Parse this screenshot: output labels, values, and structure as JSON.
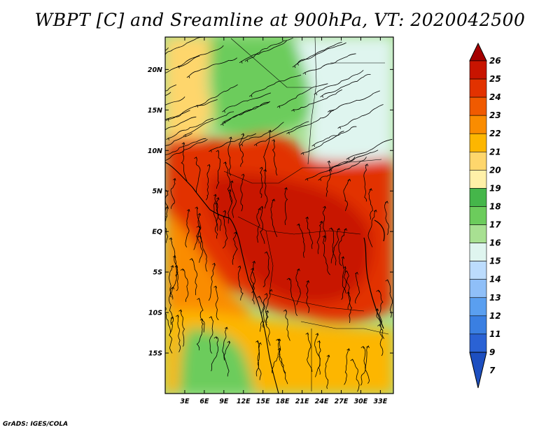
{
  "title": "WBPT [C] and Sreamline at 900hPa, VT: 2020042500",
  "footer": "GrADS: IGES/COLA",
  "map": {
    "variable": "Wet-bulb potential temperature",
    "units": "C",
    "level": "900hPa",
    "valid_time": "2020042500",
    "lon_range": [
      0,
      35
    ],
    "lat_range": [
      -20,
      24
    ],
    "x_ticks": [
      "3E",
      "6E",
      "9E",
      "12E",
      "15E",
      "18E",
      "21E",
      "24E",
      "27E",
      "30E",
      "33E"
    ],
    "x_tick_values": [
      3,
      6,
      9,
      12,
      15,
      18,
      21,
      24,
      27,
      30,
      33
    ],
    "y_ticks": [
      "20N",
      "15N",
      "10N",
      "5N",
      "EQ",
      "5S",
      "10S",
      "15S"
    ],
    "y_tick_values": [
      20,
      15,
      10,
      5,
      0,
      -5,
      -10,
      -15
    ],
    "field_regions": [
      {
        "name": "north-west warm strip",
        "value": 20
      },
      {
        "name": "sahel green zone",
        "value": 17
      },
      {
        "name": "north-east cool zone",
        "value": 15
      },
      {
        "name": "equatorial hot belt",
        "value": 24
      },
      {
        "name": "congo core",
        "value": 25
      },
      {
        "name": "atlantic band",
        "value": 22
      },
      {
        "name": "southern highlands",
        "value": 21
      },
      {
        "name": "south-west green zone",
        "value": 17
      }
    ]
  },
  "colorbar": {
    "labels": [
      "26",
      "25",
      "24",
      "23",
      "22",
      "21",
      "20",
      "19",
      "18",
      "17",
      "16",
      "15",
      "14",
      "13",
      "12",
      "11",
      "9",
      "7"
    ],
    "colors": [
      "#a50000",
      "#c81400",
      "#e23200",
      "#f05a00",
      "#fa8c00",
      "#fdb600",
      "#fed66c",
      "#fff0a8",
      "#45b64a",
      "#6ccc5c",
      "#a8e092",
      "#dff5ef",
      "#bcdcfd",
      "#8fbff8",
      "#5a9ff0",
      "#3a7fe2",
      "#2a62d4",
      "#1d4fc0"
    ]
  }
}
